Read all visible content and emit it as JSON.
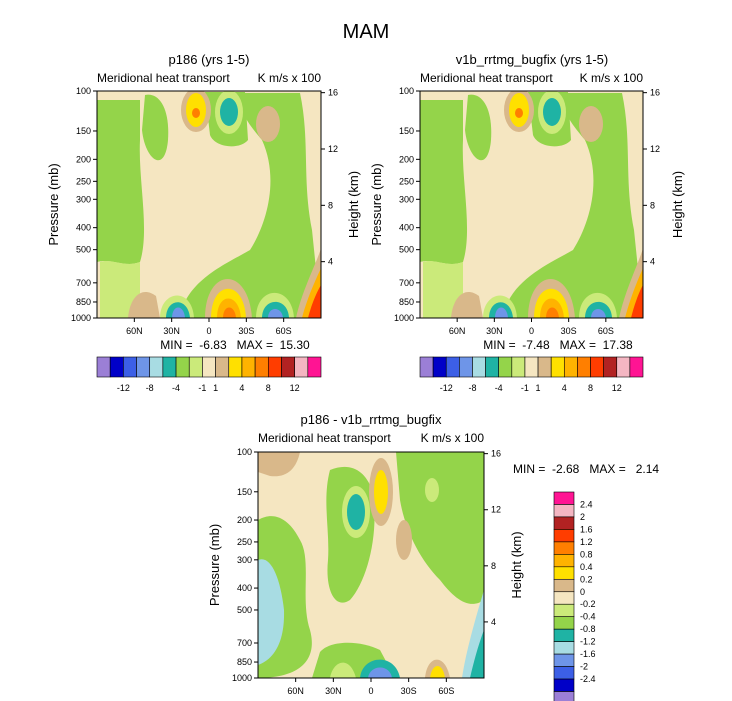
{
  "figure": {
    "title": "MAM"
  },
  "colors": {
    "levels_main": [
      "#9B7FD6",
      "#0000C8",
      "#3C5FE6",
      "#6E95E8",
      "#A8DCE3",
      "#1FB3A4",
      "#94D44A",
      "#CBEA7A",
      "#F5E6C1",
      "#D9B88A",
      "#FFE000",
      "#FFB300",
      "#FF7F00",
      "#FF3D00",
      "#B22222",
      "#F4B6C2",
      "#FF1493"
    ],
    "levels_diff": [
      "#9B7FD6",
      "#0000C8",
      "#3C5FE6",
      "#6E95E8",
      "#A8DCE3",
      "#1FB3A4",
      "#94D44A",
      "#CBEA7A",
      "#F5E6C1",
      "#D9B88A",
      "#FFE000",
      "#FFB300",
      "#FF7F00",
      "#FF3D00",
      "#B22222",
      "#F4B6C2",
      "#FF1493"
    ]
  },
  "chart_data": [
    {
      "type": "heatmap",
      "title": "p186 (yrs 1-5)",
      "subtitle_left": "Meridional heat transport",
      "subtitle_right": "K m/s x 100",
      "ylabel": "Pressure (mb)",
      "ylabel_right": "Height (km)",
      "y_ticks": [
        "100",
        "150",
        "200",
        "250",
        "300",
        "400",
        "500",
        "700",
        "850",
        "1000"
      ],
      "y_tick_values": [
        100,
        150,
        200,
        250,
        300,
        400,
        500,
        700,
        850,
        1000
      ],
      "y_right_ticks": [
        "16",
        "12",
        "8",
        "4"
      ],
      "y_right_values": [
        16,
        12,
        8,
        4
      ],
      "x_ticks": [
        "60N",
        "30N",
        "0",
        "30S",
        "60S"
      ],
      "x_values": [
        60,
        30,
        0,
        -30,
        -60
      ],
      "xlim": [
        90,
        -90
      ],
      "min_max_text": "MIN =  -6.83   MAX =  15.30",
      "min": -6.83,
      "max": 15.3,
      "colorbar_orientation": "horizontal",
      "colorbar_labels": [
        "-12",
        "-8",
        "-4",
        "-1",
        "1",
        "4",
        "8",
        "12"
      ],
      "colorbar_levels": [
        -12,
        -10,
        -8,
        -6,
        -4,
        -2,
        -1,
        -0.5,
        0.5,
        1,
        2,
        4,
        6,
        8,
        10,
        12
      ]
    },
    {
      "type": "heatmap",
      "title": "v1b_rrtmg_bugfix (yrs 1-5)",
      "subtitle_left": "Meridional heat transport",
      "subtitle_right": "K m/s x 100",
      "ylabel": "Pressure (mb)",
      "ylabel_right": "Height (km)",
      "y_ticks": [
        "100",
        "150",
        "200",
        "250",
        "300",
        "400",
        "500",
        "700",
        "850",
        "1000"
      ],
      "y_tick_values": [
        100,
        150,
        200,
        250,
        300,
        400,
        500,
        700,
        850,
        1000
      ],
      "y_right_ticks": [
        "16",
        "12",
        "8",
        "4"
      ],
      "y_right_values": [
        16,
        12,
        8,
        4
      ],
      "x_ticks": [
        "60N",
        "30N",
        "0",
        "30S",
        "60S"
      ],
      "x_values": [
        60,
        30,
        0,
        -30,
        -60
      ],
      "xlim": [
        90,
        -90
      ],
      "min_max_text": "MIN =  -7.48   MAX =  17.38",
      "min": -7.48,
      "max": 17.38,
      "colorbar_orientation": "horizontal",
      "colorbar_labels": [
        "-12",
        "-8",
        "-4",
        "-1",
        "1",
        "4",
        "8",
        "12"
      ],
      "colorbar_levels": [
        -12,
        -10,
        -8,
        -6,
        -4,
        -2,
        -1,
        -0.5,
        0.5,
        1,
        2,
        4,
        6,
        8,
        10,
        12
      ]
    },
    {
      "type": "heatmap",
      "title": "p186 - v1b_rrtmg_bugfix",
      "subtitle_left": "Meridional heat transport",
      "subtitle_right": "K m/s x 100",
      "ylabel": "Pressure (mb)",
      "ylabel_right": "Height (km)",
      "y_ticks": [
        "100",
        "150",
        "200",
        "250",
        "300",
        "400",
        "500",
        "700",
        "850",
        "1000"
      ],
      "y_tick_values": [
        100,
        150,
        200,
        250,
        300,
        400,
        500,
        700,
        850,
        1000
      ],
      "y_right_ticks": [
        "16",
        "12",
        "8",
        "4"
      ],
      "y_right_values": [
        16,
        12,
        8,
        4
      ],
      "x_ticks": [
        "60N",
        "30N",
        "0",
        "30S",
        "60S"
      ],
      "x_values": [
        60,
        30,
        0,
        -30,
        -60
      ],
      "xlim": [
        90,
        -90
      ],
      "min_max_text": "MIN =  -2.68   MAX =   2.14",
      "min": -2.68,
      "max": 2.14,
      "colorbar_orientation": "vertical",
      "colorbar_labels": [
        "2.4",
        "2",
        "1.6",
        "1.2",
        "0.8",
        "0.4",
        "0.2",
        "0",
        "-0.2",
        "-0.4",
        "-0.8",
        "-1.2",
        "-1.6",
        "-2",
        "-2.4"
      ],
      "colorbar_levels": [
        2.4,
        2,
        1.6,
        1.2,
        0.8,
        0.4,
        0.2,
        0,
        -0.2,
        -0.4,
        -0.8,
        -1.2,
        -1.6,
        -2,
        -2.4
      ]
    }
  ]
}
